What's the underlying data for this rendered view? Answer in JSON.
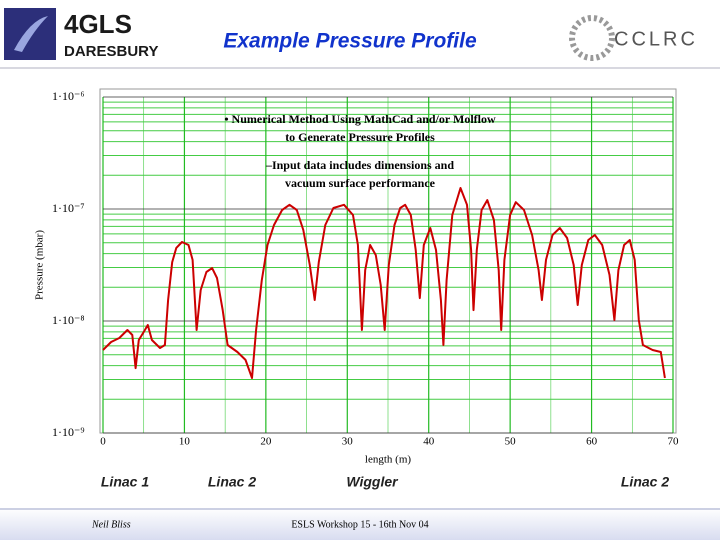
{
  "header": {
    "logo_left_top": "4GLS",
    "logo_left_bottom": "DARESBURY",
    "logo_right": "CCLRC"
  },
  "footer": {
    "author": "Neil Bliss",
    "event": "ESLS Workshop 15 - 16th Nov 04"
  },
  "chart_data": {
    "type": "line",
    "title": "Example Pressure Profile",
    "annotations": [
      "• Numerical Method Using MathCad and/or Molflow to Generate Pressure Profiles",
      "–Input data includes dimensions and vacuum surface performance"
    ],
    "xlabel": "length (m)",
    "ylabel": "Pressure (mbar)",
    "section_labels": [
      "Linac 1",
      "Linac 2",
      "Wiggler",
      "Linac 2"
    ],
    "yscale": "log",
    "grid": true,
    "xlim": [
      0,
      70
    ],
    "xticks": [
      0,
      10,
      20,
      30,
      40,
      50,
      60,
      70
    ],
    "ylim": [
      1e-09,
      1e-06
    ],
    "yticks": [
      {
        "value": 1e-09,
        "label": "1·10⁻⁹"
      },
      {
        "value": 1e-08,
        "label": "1·10⁻⁸"
      },
      {
        "value": 1e-07,
        "label": "1·10⁻⁷"
      },
      {
        "value": 1e-06,
        "label": "1·10⁻⁶"
      }
    ],
    "yminorticks": [
      2e-09,
      3e-09,
      4e-09,
      5e-09,
      6e-09,
      7e-09,
      8e-09,
      9e-09,
      2e-08,
      3e-08,
      4e-08,
      5e-08,
      6e-08,
      7e-08,
      8e-08,
      9e-08,
      2e-07,
      3e-07,
      4e-07,
      5e-07,
      6e-07,
      7e-07,
      8e-07,
      9e-07
    ],
    "xminorticks": [
      5,
      15,
      25,
      35,
      45,
      55,
      65
    ],
    "series": [
      {
        "color": "#cc0000",
        "x": [
          0,
          1,
          2,
          3,
          3.6,
          4,
          4.4,
          5,
          5.5,
          6,
          7,
          7.6,
          8,
          8.5,
          9,
          9.7,
          10.5,
          11,
          11.5,
          12,
          12.7,
          13.4,
          14,
          14.7,
          15.3,
          16.5,
          17.5,
          18.3,
          18.8,
          19.5,
          20.2,
          21,
          22,
          22.9,
          23.8,
          24.6,
          25.4,
          26,
          26.5,
          27.3,
          28.3,
          29.6,
          30.7,
          31.3,
          31.8,
          32.2,
          32.8,
          33.5,
          34.1,
          34.6,
          35.1,
          35.8,
          36.5,
          37.1,
          37.8,
          38.4,
          38.9,
          39.4,
          40.2,
          40.9,
          41.5,
          41.8,
          42.2,
          42.9,
          43.9,
          44.7,
          45.2,
          45.5,
          45.9,
          46.5,
          47.2,
          48,
          48.6,
          48.9,
          49.3,
          50,
          50.7,
          51.7,
          52.7,
          53.5,
          53.9,
          54.4,
          55.2,
          56.1,
          57,
          57.8,
          58.3,
          58.8,
          59.6,
          60.4,
          61.3,
          62.2,
          62.8,
          63.3,
          64,
          64.7,
          65.3,
          65.8,
          66.3,
          67.5,
          68.5,
          69
        ],
        "values": [
          5.51e-09,
          6.49e-09,
          7.05e-09,
          8.31e-09,
          7.5e-09,
          3.8e-09,
          6.76e-09,
          7.97e-09,
          9.21e-09,
          6.76e-09,
          5.74e-09,
          6.11e-09,
          1.54e-08,
          3.36e-08,
          4.49e-08,
          5.07e-08,
          4.77e-08,
          3.51e-08,
          8.31e-09,
          1.89e-08,
          2.74e-08,
          2.97e-08,
          2.42e-08,
          1.25e-08,
          6.11e-09,
          5.29e-09,
          4.49e-09,
          3.1e-09,
          8.31e-09,
          2.32e-08,
          4.77e-08,
          7.2e-08,
          9.8e-08,
          1.09e-07,
          9.8e-08,
          6.49e-08,
          3.16e-08,
          1.54e-08,
          3.36e-08,
          7.2e-08,
          1.02e-07,
          1.09e-07,
          8.84e-08,
          4.77e-08,
          8.31e-09,
          2.85e-08,
          4.77e-08,
          3.88e-08,
          2.1e-08,
          8.31e-09,
          3.16e-08,
          7.2e-08,
          1.02e-07,
          1.09e-07,
          8.84e-08,
          4.31e-08,
          1.6e-08,
          4.77e-08,
          6.76e-08,
          4.31e-08,
          1.54e-08,
          6.11e-09,
          2.32e-08,
          8.84e-08,
          1.54e-07,
          1.09e-07,
          4.31e-08,
          1.25e-08,
          4.31e-08,
          9.8e-08,
          1.2e-07,
          7.98e-08,
          2.85e-08,
          8.31e-09,
          3.51e-08,
          8.84e-08,
          1.15e-07,
          9.8e-08,
          5.86e-08,
          2.85e-08,
          1.54e-08,
          3.51e-08,
          5.86e-08,
          6.76e-08,
          5.51e-08,
          3.16e-08,
          1.39e-08,
          3.16e-08,
          5.29e-08,
          5.86e-08,
          4.77e-08,
          2.58e-08,
          1.02e-08,
          2.85e-08,
          4.77e-08,
          5.29e-08,
          3.51e-08,
          1.02e-08,
          6.11e-09,
          5.51e-09,
          5.29e-09,
          3.1e-09
        ]
      }
    ]
  }
}
